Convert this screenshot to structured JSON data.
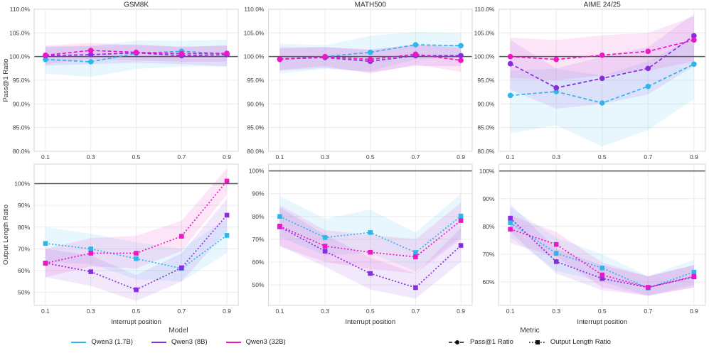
{
  "figure": {
    "x_axis_label": "Interrupt position",
    "x_tick_labels": [
      "0.1",
      "0.3",
      "0.5",
      "0.7",
      "0.9"
    ],
    "row1_ylabel": "Pass@1 Ratio",
    "row2_ylabel": "Output Length Ratio"
  },
  "colors": {
    "qwen_1_7b": "#2DB6EA",
    "qwen_8b": "#8A2BE2",
    "qwen_32b": "#EE16C3",
    "reference_line": "#595959",
    "grid": "#ECECEC",
    "panel_border": "#D6D6D6",
    "tick_text": "#3C3C3C",
    "title_text": "#2E2E2E",
    "metric_legend": "#111111"
  },
  "legend": {
    "model": {
      "title": "Model",
      "items": [
        {
          "label": "Qwen3 (1.7B)",
          "color_key": "qwen_1_7b"
        },
        {
          "label": "Qwen3 (8B)",
          "color_key": "qwen_8b"
        },
        {
          "label": "Qwen3 (32B)",
          "color_key": "qwen_32b"
        }
      ]
    },
    "metric": {
      "title": "Metric",
      "items": [
        {
          "label": "Pass@1 Ratio",
          "marker": "circle",
          "line": "dashed"
        },
        {
          "label": "Output Length Ratio",
          "marker": "square",
          "line": "dotted"
        }
      ]
    }
  },
  "chart_data": [
    {
      "type": "line",
      "row": 0,
      "col": 0,
      "title": "GSM8K",
      "ylabel": "Pass@1 Ratio",
      "xlabel": "",
      "marker": "circle",
      "dash": "dashed",
      "x": [
        0.1,
        0.3,
        0.5,
        0.7,
        0.9
      ],
      "xlim": [
        0.05,
        0.95
      ],
      "ylim": [
        80,
        110
      ],
      "ref_line": 100,
      "ytick_values": [
        80,
        85,
        90,
        95,
        100,
        105,
        110
      ],
      "ytick_labels": [
        "80.0%",
        "85.0%",
        "90.0%",
        "95.0%",
        "100.0%",
        "105.0%",
        "110.0%"
      ],
      "series": [
        {
          "name": "Qwen3 (1.7B)",
          "color_key": "qwen_1_7b",
          "values": [
            99.4,
            98.9,
            100.7,
            101.1,
            100.6
          ],
          "band_lo": [
            96.4,
            95.7,
            97.4,
            97.9,
            97.9
          ],
          "band_hi": [
            102.0,
            102.2,
            103.4,
            103.3,
            103.6
          ]
        },
        {
          "name": "Qwen3 (8B)",
          "color_key": "qwen_8b",
          "values": [
            100.2,
            100.4,
            100.8,
            100.2,
            100.4
          ],
          "band_lo": [
            98.1,
            98.4,
            98.7,
            98.4,
            97.9
          ],
          "band_hi": [
            102.1,
            102.3,
            102.6,
            102.0,
            102.4
          ]
        },
        {
          "name": "Qwen3 (32B)",
          "color_key": "qwen_32b",
          "values": [
            100.3,
            101.3,
            100.9,
            100.6,
            100.7
          ],
          "band_lo": [
            98.4,
            99.5,
            99.2,
            98.9,
            98.9
          ],
          "band_hi": [
            102.3,
            102.9,
            102.4,
            102.1,
            102.3
          ]
        }
      ]
    },
    {
      "type": "line",
      "row": 0,
      "col": 1,
      "title": "MATH500",
      "ylabel": "",
      "xlabel": "",
      "marker": "circle",
      "dash": "dashed",
      "x": [
        0.1,
        0.3,
        0.5,
        0.7,
        0.9
      ],
      "xlim": [
        0.05,
        0.95
      ],
      "ylim": [
        80,
        110
      ],
      "ref_line": 100,
      "ytick_values": [
        80,
        85,
        90,
        95,
        100,
        105,
        110
      ],
      "ytick_labels": [
        "80.0%",
        "85.0%",
        "90.0%",
        "95.0%",
        "100.0%",
        "105.0%",
        "110.0%"
      ],
      "series": [
        {
          "name": "Qwen3 (1.7B)",
          "color_key": "qwen_1_7b",
          "values": [
            99.5,
            100.0,
            100.9,
            102.5,
            102.3
          ],
          "band_lo": [
            96.4,
            97.4,
            96.9,
            99.4,
            99.7
          ],
          "band_hi": [
            102.7,
            102.4,
            104.4,
            105.2,
            105.0
          ]
        },
        {
          "name": "Qwen3 (8B)",
          "color_key": "qwen_8b",
          "values": [
            99.5,
            99.8,
            99.0,
            100.2,
            100.2
          ],
          "band_lo": [
            97.0,
            97.6,
            96.7,
            98.0,
            98.0
          ],
          "band_hi": [
            102.0,
            102.0,
            101.4,
            102.4,
            102.5
          ]
        },
        {
          "name": "Qwen3 (32B)",
          "color_key": "qwen_32b",
          "values": [
            99.4,
            100.0,
            99.4,
            100.5,
            99.2
          ],
          "band_lo": [
            97.2,
            98.0,
            96.4,
            98.3,
            96.8
          ],
          "band_hi": [
            101.7,
            102.0,
            101.5,
            102.6,
            101.8
          ]
        }
      ]
    },
    {
      "type": "line",
      "row": 0,
      "col": 2,
      "title": "AIME 24/25",
      "ylabel": "",
      "xlabel": "",
      "marker": "circle",
      "dash": "dashed",
      "x": [
        0.1,
        0.3,
        0.5,
        0.7,
        0.9
      ],
      "xlim": [
        0.05,
        0.95
      ],
      "ylim": [
        80,
        110
      ],
      "ref_line": 100,
      "ytick_values": [
        80,
        85,
        90,
        95,
        100,
        105,
        110
      ],
      "ytick_labels": [
        "80.0%",
        "85.0%",
        "90.0%",
        "95.0%",
        "100.0%",
        "105.0%",
        "110.0%"
      ],
      "series": [
        {
          "name": "Qwen3 (1.7B)",
          "color_key": "qwen_1_7b",
          "values": [
            91.8,
            92.6,
            90.2,
            93.7,
            98.4
          ],
          "band_lo": [
            83.8,
            85.5,
            81.0,
            84.5,
            91.0
          ],
          "band_hi": [
            97.0,
            97.5,
            96.0,
            99.0,
            104.0
          ]
        },
        {
          "name": "Qwen3 (8B)",
          "color_key": "qwen_8b",
          "values": [
            98.5,
            93.4,
            95.4,
            97.5,
            104.4
          ],
          "band_lo": [
            93.0,
            89.0,
            90.0,
            92.0,
            98.0
          ],
          "band_hi": [
            103.5,
            97.5,
            100.0,
            102.0,
            109.0
          ]
        },
        {
          "name": "Qwen3 (32B)",
          "color_key": "qwen_32b",
          "values": [
            100.0,
            99.4,
            100.3,
            101.1,
            103.5
          ],
          "band_lo": [
            95.5,
            95.0,
            96.0,
            97.0,
            99.0
          ],
          "band_hi": [
            104.0,
            103.5,
            104.5,
            105.0,
            108.5
          ]
        }
      ]
    },
    {
      "type": "line",
      "row": 1,
      "col": 0,
      "title": "",
      "ylabel": "Output Length Ratio",
      "xlabel": "Interrupt position",
      "marker": "square",
      "dash": "dotted",
      "x": [
        0.1,
        0.3,
        0.5,
        0.7,
        0.9
      ],
      "xlim": [
        0.05,
        0.95
      ],
      "ylim": [
        44,
        109
      ],
      "ref_line": 100,
      "ytick_values": [
        50,
        60,
        70,
        80,
        90,
        100
      ],
      "ytick_labels": [
        "50%",
        "60%",
        "70%",
        "80%",
        "90%",
        "100%"
      ],
      "series": [
        {
          "name": "Qwen3 (1.7B)",
          "color_key": "qwen_1_7b",
          "values": [
            72.5,
            70.0,
            65.5,
            61.0,
            76.2
          ],
          "band_lo": [
            64,
            63,
            56,
            55,
            68
          ],
          "band_hi": [
            80,
            77,
            73,
            70,
            84
          ]
        },
        {
          "name": "Qwen3 (8B)",
          "color_key": "qwen_8b",
          "values": [
            63.5,
            59.5,
            51.2,
            61.3,
            85.5
          ],
          "band_lo": [
            57,
            53,
            46,
            55,
            78
          ],
          "band_hi": [
            70,
            67,
            58,
            68,
            93
          ]
        },
        {
          "name": "Qwen3 (32B)",
          "color_key": "qwen_32b",
          "values": [
            63.4,
            68.0,
            68.0,
            75.8,
            101.2
          ],
          "band_lo": [
            57,
            62,
            61,
            69,
            95
          ],
          "band_hi": [
            70,
            75,
            76,
            83,
            107
          ]
        }
      ]
    },
    {
      "type": "line",
      "row": 1,
      "col": 1,
      "title": "",
      "ylabel": "",
      "xlabel": "Interrupt position",
      "marker": "square",
      "dash": "dotted",
      "x": [
        0.1,
        0.3,
        0.5,
        0.7,
        0.9
      ],
      "xlim": [
        0.05,
        0.95
      ],
      "ylim": [
        41,
        103
      ],
      "ref_line": 100,
      "ytick_values": [
        50,
        60,
        70,
        80,
        90,
        100
      ],
      "ytick_labels": [
        "50%",
        "60%",
        "70%",
        "80%",
        "90%",
        "100%"
      ],
      "series": [
        {
          "name": "Qwen3 (1.7B)",
          "color_key": "qwen_1_7b",
          "values": [
            80.0,
            70.8,
            73.0,
            64.2,
            80.2
          ],
          "band_lo": [
            71,
            63,
            64,
            56,
            71
          ],
          "band_hi": [
            89,
            79,
            83,
            73,
            90
          ]
        },
        {
          "name": "Qwen3 (8B)",
          "color_key": "qwen_8b",
          "values": [
            75.5,
            64.8,
            55.0,
            48.8,
            67.3
          ],
          "band_lo": [
            67,
            58,
            48,
            44,
            60
          ],
          "band_hi": [
            84,
            72,
            62,
            55,
            75
          ]
        },
        {
          "name": "Qwen3 (32B)",
          "color_key": "qwen_32b",
          "values": [
            75.8,
            67.0,
            64.3,
            62.3,
            78.2
          ],
          "band_lo": [
            67,
            60,
            57,
            55,
            70
          ],
          "band_hi": [
            85,
            74,
            72,
            70,
            86
          ]
        }
      ]
    },
    {
      "type": "line",
      "row": 1,
      "col": 2,
      "title": "",
      "ylabel": "",
      "xlabel": "Interrupt position",
      "marker": "square",
      "dash": "dotted",
      "x": [
        0.1,
        0.3,
        0.5,
        0.7,
        0.9
      ],
      "xlim": [
        0.05,
        0.95
      ],
      "ylim": [
        51.5,
        102.5
      ],
      "ref_line": 100,
      "ytick_values": [
        60,
        70,
        80,
        90,
        100
      ],
      "ytick_labels": [
        "60%",
        "70%",
        "80%",
        "90%",
        "100%"
      ],
      "series": [
        {
          "name": "Qwen3 (1.7B)",
          "color_key": "qwen_1_7b",
          "values": [
            81.3,
            70.3,
            65.0,
            57.8,
            63.5
          ],
          "band_lo": [
            76,
            64,
            60,
            55,
            59
          ],
          "band_hi": [
            87,
            76,
            70,
            62,
            68
          ]
        },
        {
          "name": "Qwen3 (8B)",
          "color_key": "qwen_8b",
          "values": [
            83.0,
            67.3,
            61.2,
            58.0,
            61.8
          ],
          "band_lo": [
            78,
            63,
            57,
            55,
            58
          ],
          "band_hi": [
            88,
            72,
            66,
            62,
            66
          ]
        },
        {
          "name": "Qwen3 (32B)",
          "color_key": "qwen_32b",
          "values": [
            79.0,
            73.5,
            62.5,
            58.0,
            62.0
          ],
          "band_lo": [
            74,
            69,
            58,
            55,
            58
          ],
          "band_hi": [
            84,
            78,
            67,
            62,
            66
          ]
        }
      ]
    }
  ]
}
